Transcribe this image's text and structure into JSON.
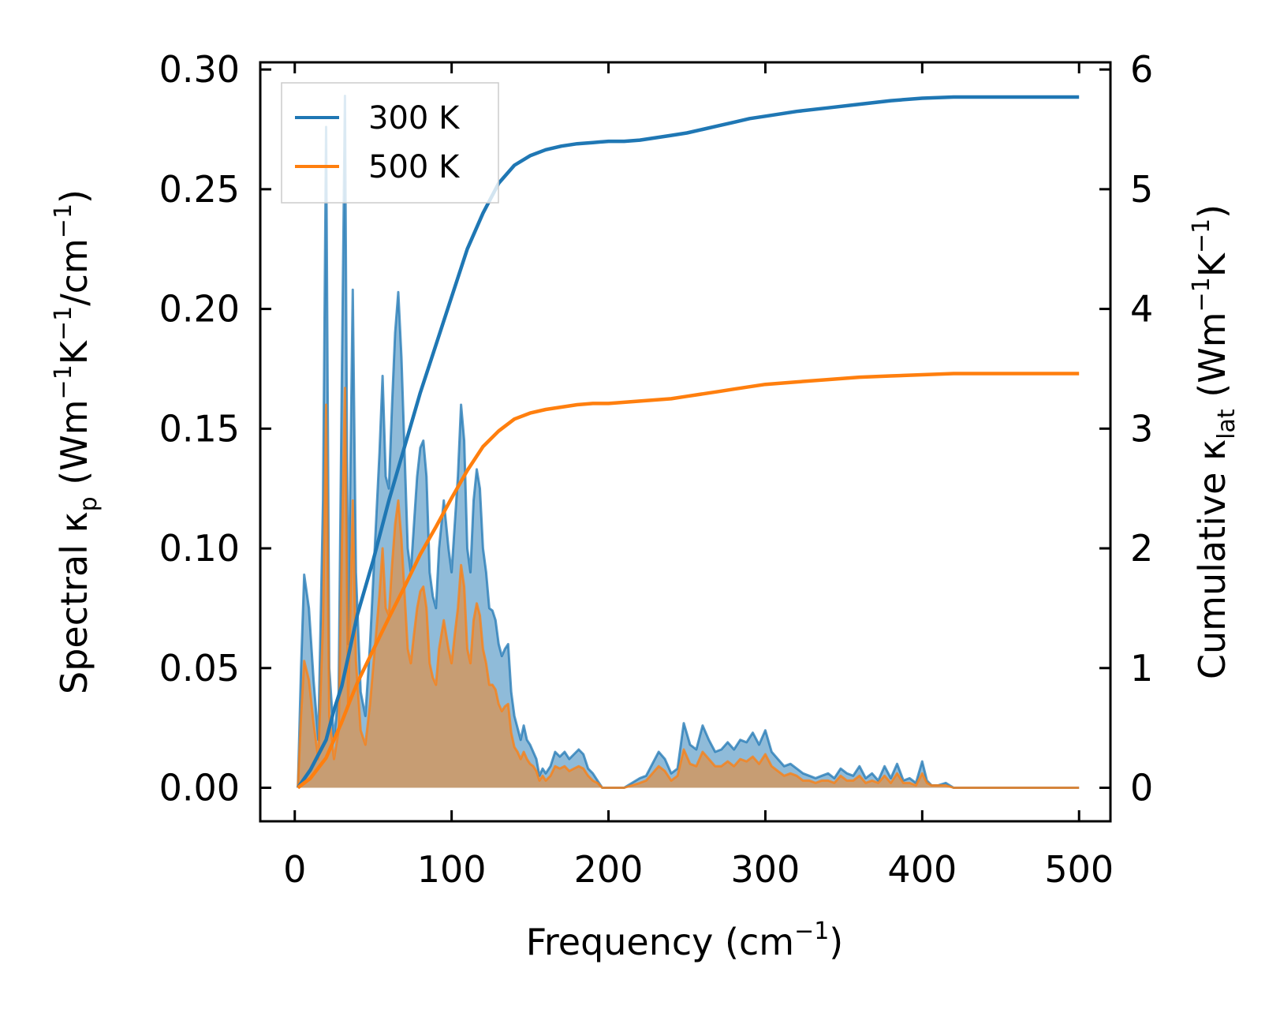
{
  "chart_data": {
    "type": "line",
    "description_axes": "dual-y",
    "x": {
      "label": "Frequency (cm",
      "label_sup": "−1",
      "label_end": ")",
      "lim": [
        -22,
        520
      ],
      "ticks": [
        0,
        100,
        200,
        300,
        400,
        500
      ],
      "tick_labels": [
        "0",
        "100",
        "200",
        "300",
        "400",
        "500"
      ]
    },
    "y_left": {
      "label_pre": "Spectral κ",
      "label_sub": "p",
      "label_units": " (Wm",
      "label_sup1": "−1",
      "label_k": "K",
      "label_sup2": "−1",
      "label_slash": "/cm",
      "label_sup3": "−1",
      "label_end": ")",
      "lim": [
        -0.014,
        0.303
      ],
      "ticks": [
        0.0,
        0.05,
        0.1,
        0.15,
        0.2,
        0.25,
        0.3
      ],
      "tick_labels": [
        "0.00",
        "0.05",
        "0.10",
        "0.15",
        "0.20",
        "0.25",
        "0.30"
      ]
    },
    "y_right": {
      "label_pre": "Cumulative κ",
      "label_sub": "lat",
      "label_units": " (Wm",
      "label_sup1": "−1",
      "label_k": "K",
      "label_sup2": "−1",
      "label_end": ")",
      "lim": [
        -0.28,
        6.06
      ],
      "ticks": [
        0,
        1,
        2,
        3,
        4,
        5,
        6
      ],
      "tick_labels": [
        "0",
        "1",
        "2",
        "3",
        "4",
        "5",
        "6"
      ]
    },
    "legend": {
      "placement": "top-left",
      "entries": [
        {
          "name": "300 K",
          "color": "#1f77b4"
        },
        {
          "name": "500 K",
          "color": "#ff7f0e"
        }
      ]
    },
    "spectral_series": [
      {
        "name": "300 K",
        "color": "#1f77b4",
        "axis": "left",
        "x": [
          2,
          4,
          6,
          9,
          12,
          15,
          18,
          20,
          22,
          25,
          28,
          30,
          32,
          34,
          37,
          39,
          42,
          45,
          48,
          51,
          54,
          56,
          58,
          60,
          62,
          64,
          66,
          68,
          70,
          72,
          74,
          76,
          78,
          80,
          82,
          84,
          86,
          88,
          90,
          92,
          95,
          98,
          100,
          102,
          104,
          106,
          108,
          110,
          112,
          114,
          116,
          118,
          120,
          122,
          124,
          126,
          128,
          130,
          132,
          134,
          136,
          138,
          140,
          142,
          144,
          146,
          148,
          150,
          152,
          154,
          156,
          158,
          160,
          163,
          166,
          169,
          172,
          175,
          178,
          181,
          184,
          187,
          190,
          193,
          196,
          200,
          205,
          210,
          215,
          220,
          224,
          228,
          232,
          236,
          240,
          244,
          248,
          252,
          256,
          260,
          264,
          268,
          272,
          276,
          280,
          284,
          288,
          292,
          296,
          300,
          304,
          308,
          312,
          316,
          320,
          324,
          328,
          332,
          336,
          340,
          344,
          348,
          352,
          356,
          360,
          364,
          368,
          372,
          376,
          380,
          384,
          388,
          392,
          396,
          400,
          403,
          406,
          410,
          415,
          420,
          430,
          440,
          460,
          480,
          500
        ],
        "y": [
          0.0,
          0.05,
          0.089,
          0.075,
          0.045,
          0.02,
          0.12,
          0.276,
          0.05,
          0.02,
          0.04,
          0.17,
          0.289,
          0.06,
          0.208,
          0.09,
          0.04,
          0.03,
          0.06,
          0.1,
          0.14,
          0.172,
          0.13,
          0.125,
          0.16,
          0.19,
          0.207,
          0.18,
          0.14,
          0.1,
          0.09,
          0.11,
          0.13,
          0.142,
          0.145,
          0.13,
          0.09,
          0.08,
          0.075,
          0.1,
          0.12,
          0.1,
          0.09,
          0.11,
          0.13,
          0.16,
          0.145,
          0.1,
          0.09,
          0.12,
          0.133,
          0.125,
          0.1,
          0.09,
          0.075,
          0.074,
          0.07,
          0.06,
          0.055,
          0.058,
          0.06,
          0.04,
          0.03,
          0.025,
          0.02,
          0.026,
          0.02,
          0.018,
          0.015,
          0.012,
          0.005,
          0.008,
          0.006,
          0.009,
          0.015,
          0.013,
          0.015,
          0.012,
          0.014,
          0.016,
          0.014,
          0.008,
          0.006,
          0.003,
          0.0,
          0.0,
          0.0,
          0.0,
          0.002,
          0.004,
          0.005,
          0.01,
          0.015,
          0.012,
          0.006,
          0.008,
          0.027,
          0.018,
          0.016,
          0.026,
          0.02,
          0.015,
          0.016,
          0.019,
          0.016,
          0.02,
          0.019,
          0.023,
          0.018,
          0.024,
          0.015,
          0.012,
          0.009,
          0.01,
          0.008,
          0.006,
          0.005,
          0.004,
          0.005,
          0.006,
          0.004,
          0.008,
          0.006,
          0.005,
          0.009,
          0.004,
          0.006,
          0.003,
          0.009,
          0.004,
          0.01,
          0.003,
          0.004,
          0.002,
          0.011,
          0.003,
          0.001,
          0.001,
          0.002,
          0.0,
          0.0,
          0.0,
          0.0,
          0.0,
          0.0
        ]
      },
      {
        "name": "500 K",
        "color": "#ff7f0e",
        "axis": "left",
        "x": [
          2,
          4,
          6,
          9,
          12,
          15,
          18,
          20,
          22,
          25,
          28,
          30,
          32,
          34,
          37,
          39,
          42,
          45,
          48,
          51,
          54,
          56,
          58,
          60,
          62,
          64,
          66,
          68,
          70,
          72,
          74,
          76,
          78,
          80,
          82,
          84,
          86,
          88,
          90,
          92,
          95,
          98,
          100,
          102,
          104,
          106,
          108,
          110,
          112,
          114,
          116,
          118,
          120,
          122,
          124,
          126,
          128,
          130,
          132,
          134,
          136,
          138,
          140,
          142,
          144,
          146,
          148,
          150,
          152,
          154,
          156,
          158,
          160,
          163,
          166,
          169,
          172,
          175,
          178,
          181,
          184,
          187,
          190,
          193,
          196,
          200,
          205,
          210,
          215,
          220,
          224,
          228,
          232,
          236,
          240,
          244,
          248,
          252,
          256,
          260,
          264,
          268,
          272,
          276,
          280,
          284,
          288,
          292,
          296,
          300,
          304,
          308,
          312,
          316,
          320,
          324,
          328,
          332,
          336,
          340,
          344,
          348,
          352,
          356,
          360,
          364,
          368,
          372,
          376,
          380,
          384,
          388,
          392,
          396,
          400,
          403,
          406,
          410,
          415,
          420,
          430,
          440,
          460,
          480,
          500
        ],
        "y": [
          0.0,
          0.03,
          0.053,
          0.045,
          0.027,
          0.012,
          0.07,
          0.16,
          0.03,
          0.012,
          0.024,
          0.1,
          0.167,
          0.035,
          0.12,
          0.053,
          0.024,
          0.018,
          0.035,
          0.058,
          0.081,
          0.1,
          0.075,
          0.072,
          0.093,
          0.11,
          0.12,
          0.104,
          0.081,
          0.058,
          0.052,
          0.064,
          0.075,
          0.082,
          0.084,
          0.075,
          0.052,
          0.046,
          0.043,
          0.058,
          0.07,
          0.058,
          0.052,
          0.064,
          0.075,
          0.093,
          0.084,
          0.058,
          0.052,
          0.07,
          0.077,
          0.072,
          0.058,
          0.052,
          0.043,
          0.043,
          0.041,
          0.035,
          0.032,
          0.034,
          0.035,
          0.023,
          0.017,
          0.015,
          0.012,
          0.015,
          0.012,
          0.01,
          0.009,
          0.007,
          0.003,
          0.005,
          0.003,
          0.005,
          0.009,
          0.008,
          0.009,
          0.007,
          0.008,
          0.009,
          0.008,
          0.005,
          0.003,
          0.002,
          0.0,
          0.0,
          0.0,
          0.0,
          0.001,
          0.002,
          0.003,
          0.006,
          0.009,
          0.007,
          0.003,
          0.005,
          0.016,
          0.01,
          0.009,
          0.015,
          0.012,
          0.009,
          0.009,
          0.011,
          0.009,
          0.012,
          0.011,
          0.013,
          0.01,
          0.014,
          0.009,
          0.007,
          0.005,
          0.006,
          0.005,
          0.003,
          0.003,
          0.002,
          0.003,
          0.003,
          0.002,
          0.005,
          0.003,
          0.003,
          0.005,
          0.002,
          0.003,
          0.002,
          0.005,
          0.002,
          0.006,
          0.002,
          0.002,
          0.001,
          0.006,
          0.002,
          0.001,
          0.001,
          0.001,
          0.0,
          0.0,
          0.0,
          0.0,
          0.0,
          0.0
        ]
      }
    ],
    "cumulative_series": [
      {
        "name": "300 K",
        "color": "#1f77b4",
        "axis": "right",
        "x": [
          2,
          10,
          20,
          25,
          30,
          35,
          40,
          50,
          60,
          70,
          80,
          90,
          100,
          110,
          120,
          130,
          140,
          150,
          160,
          170,
          180,
          190,
          200,
          210,
          220,
          230,
          240,
          250,
          260,
          270,
          280,
          290,
          300,
          320,
          340,
          360,
          380,
          400,
          420,
          440,
          460,
          480,
          500
        ],
        "y": [
          0.0,
          0.15,
          0.4,
          0.65,
          0.85,
          1.15,
          1.45,
          1.9,
          2.4,
          2.85,
          3.3,
          3.7,
          4.1,
          4.5,
          4.8,
          5.05,
          5.2,
          5.28,
          5.33,
          5.36,
          5.38,
          5.39,
          5.4,
          5.4,
          5.41,
          5.43,
          5.45,
          5.47,
          5.5,
          5.53,
          5.56,
          5.59,
          5.61,
          5.65,
          5.68,
          5.71,
          5.74,
          5.76,
          5.77,
          5.77,
          5.77,
          5.77,
          5.77
        ]
      },
      {
        "name": "500 K",
        "color": "#ff7f0e",
        "axis": "right",
        "x": [
          2,
          10,
          20,
          25,
          30,
          35,
          40,
          50,
          60,
          70,
          80,
          90,
          100,
          110,
          120,
          130,
          140,
          150,
          160,
          170,
          180,
          190,
          200,
          210,
          220,
          230,
          240,
          250,
          260,
          270,
          280,
          290,
          300,
          320,
          340,
          360,
          380,
          400,
          420,
          440,
          460,
          480,
          500
        ],
        "y": [
          0.0,
          0.08,
          0.25,
          0.4,
          0.55,
          0.72,
          0.88,
          1.15,
          1.42,
          1.68,
          1.95,
          2.18,
          2.42,
          2.65,
          2.85,
          2.98,
          3.08,
          3.13,
          3.16,
          3.18,
          3.2,
          3.21,
          3.21,
          3.22,
          3.23,
          3.24,
          3.25,
          3.27,
          3.29,
          3.31,
          3.33,
          3.35,
          3.37,
          3.39,
          3.41,
          3.43,
          3.44,
          3.45,
          3.46,
          3.46,
          3.46,
          3.46,
          3.46
        ]
      }
    ]
  }
}
